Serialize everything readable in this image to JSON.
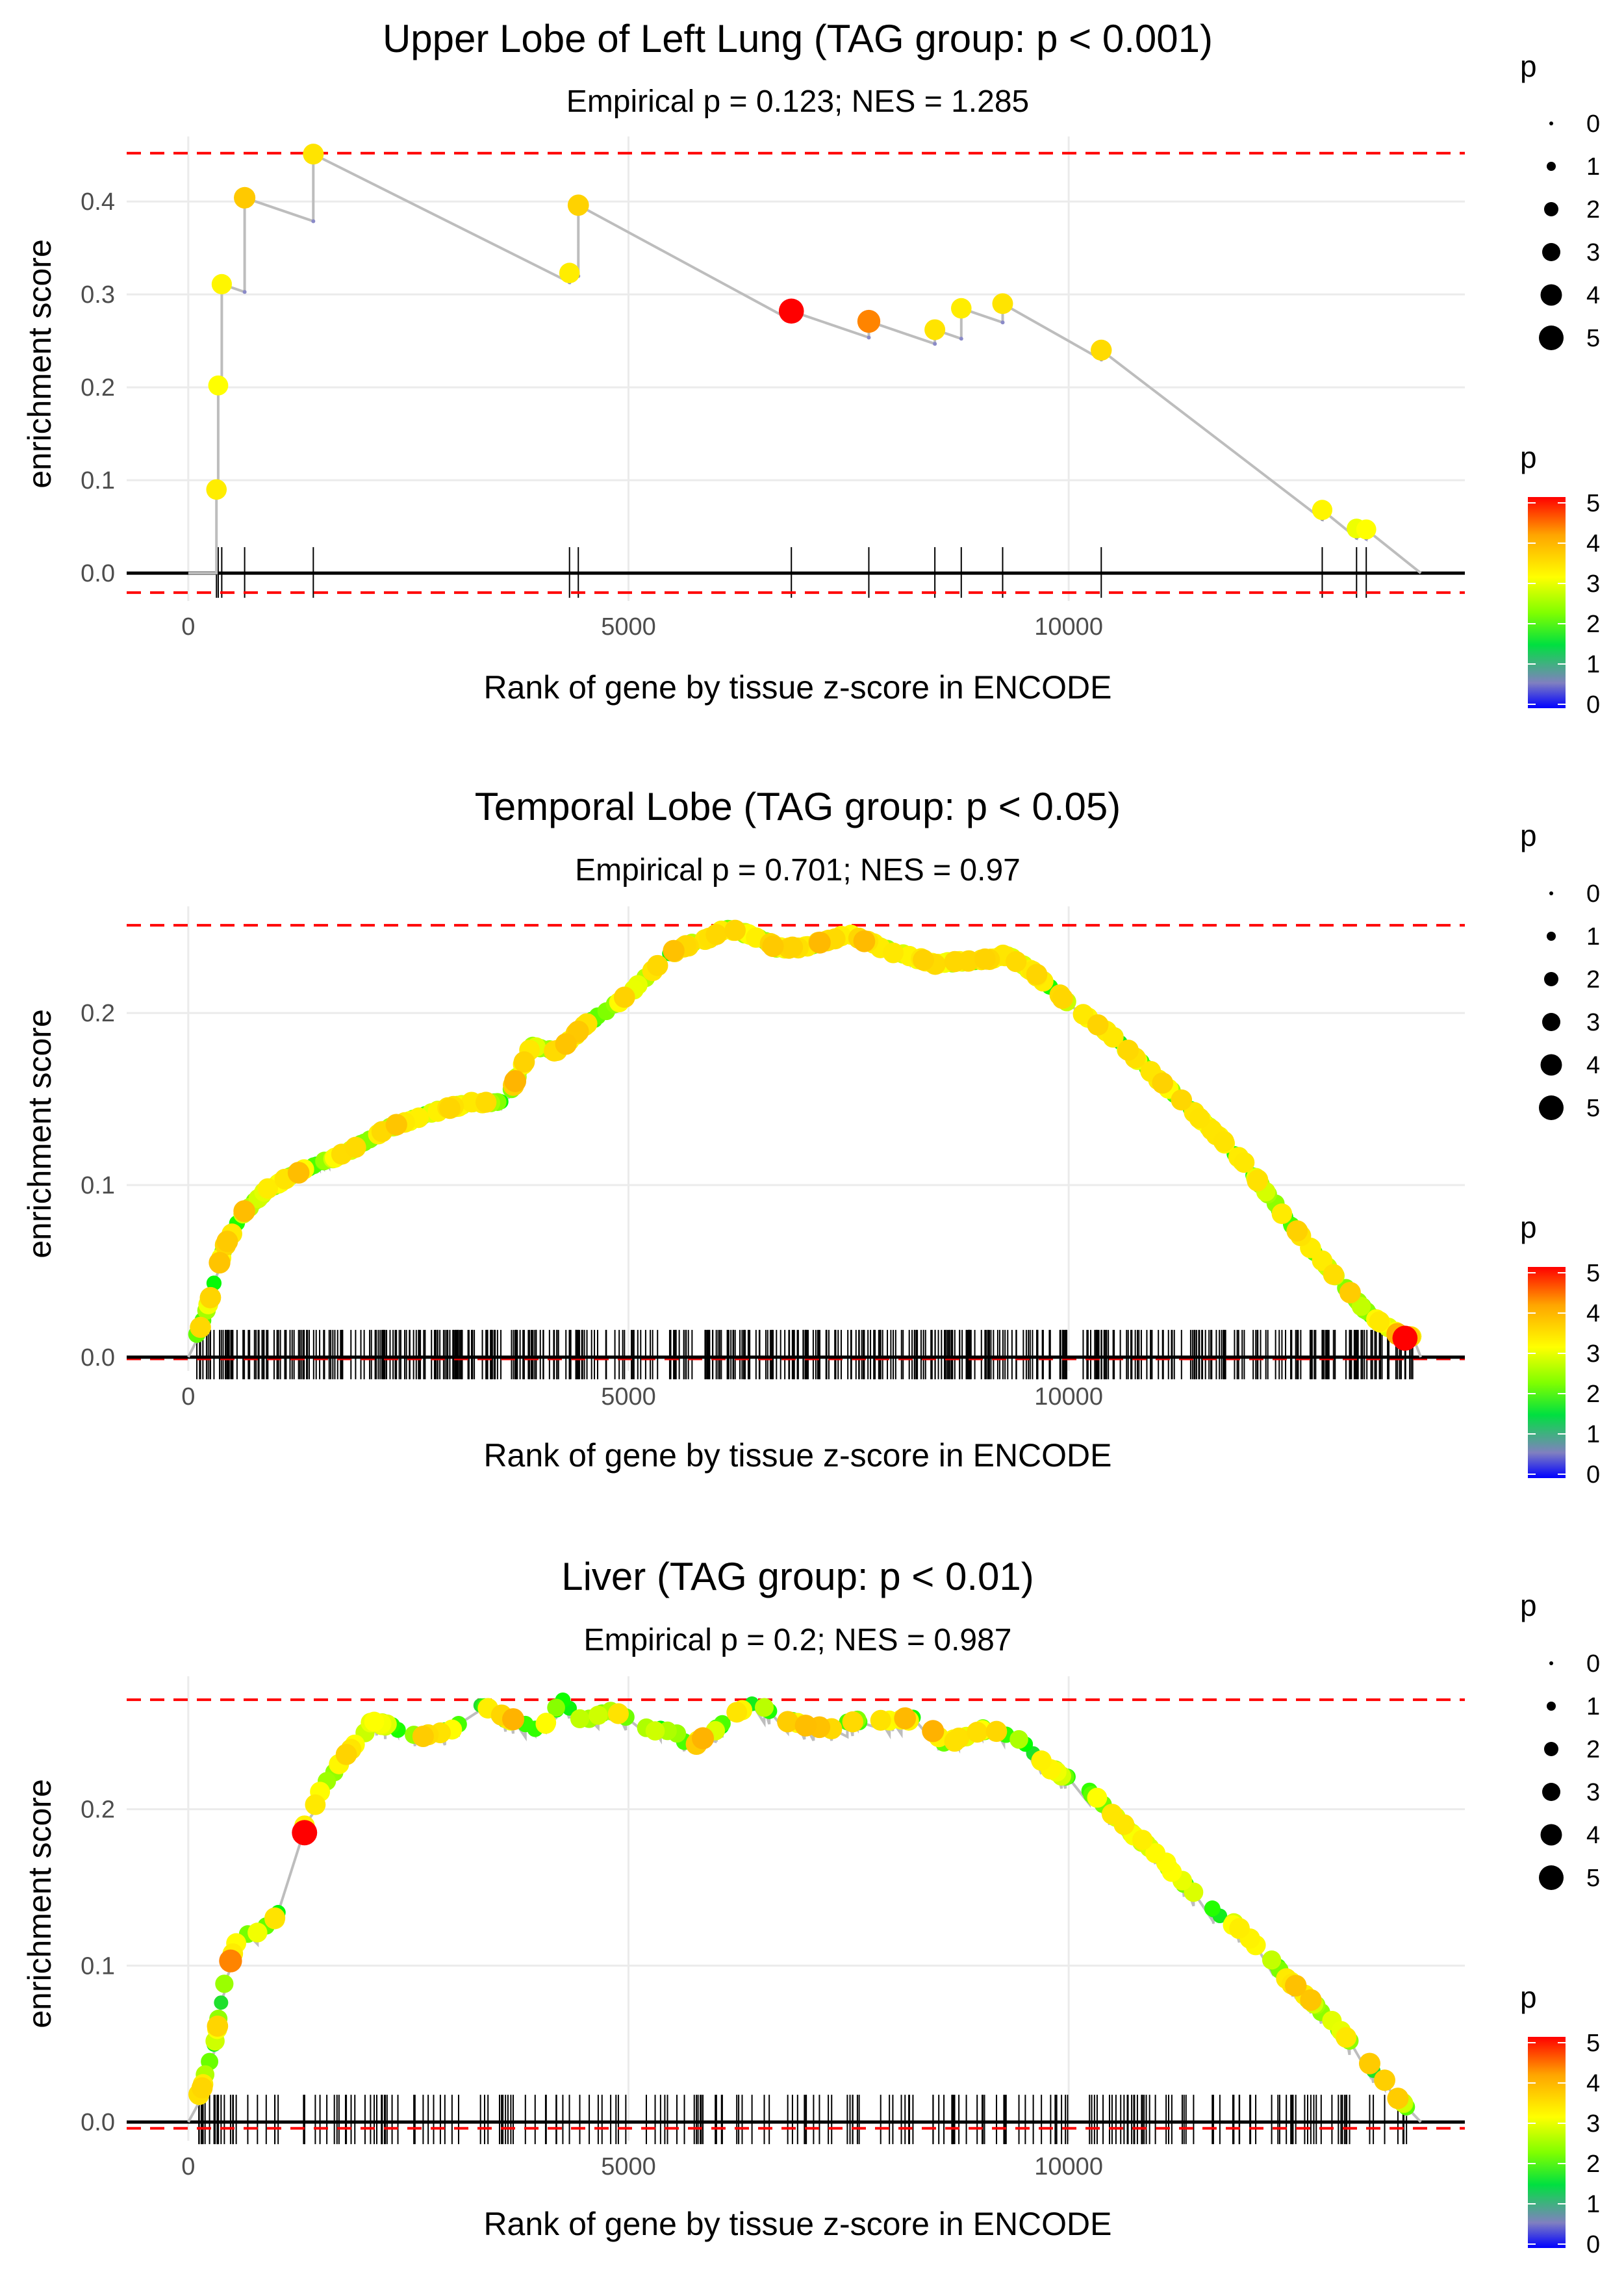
{
  "figure": {
    "x_axis_label": "Rank of gene by tissue z-score in ENCODE",
    "y_axis_label": "enrichment score"
  },
  "colors": {
    "gridline": "#ebebeb",
    "threshold_line": "#ff0000",
    "zero_line": "#000000",
    "curve": "#bdbdbd",
    "scale_0": "#0000ff",
    "scale_1": "#7f7fbf",
    "scale_2": "#00ff00",
    "scale_3": "#ffff00",
    "scale_4": "#ffa500",
    "scale_5": "#ff0000"
  },
  "legend": {
    "size_title": "p",
    "size_labels": [
      "0",
      "1",
      "2",
      "3",
      "4",
      "5"
    ],
    "color_title": "p",
    "color_labels": [
      "0",
      "1",
      "2",
      "3",
      "4",
      "5"
    ]
  },
  "chart_data": [
    {
      "type": "line",
      "title": "Upper Lobe of Left Lung (TAG group: p < 0.001)",
      "subtitle": "Empirical p = 0.123; NES = 1.285",
      "xlabel": "Rank of gene by tissue z-score in ENCODE",
      "ylabel": "enrichment score",
      "xlim": [
        -700,
        14500
      ],
      "ylim": [
        -0.03,
        0.47
      ],
      "x_ticks": [
        0,
        5000,
        10000
      ],
      "x_tick_labels": [
        "0",
        "5000",
        "10000"
      ],
      "y_ticks": [
        0.0,
        0.1,
        0.2,
        0.3,
        0.4
      ],
      "y_tick_labels": [
        "0.0",
        "0.1",
        "0.2",
        "0.3",
        "0.4"
      ],
      "threshold_max": 0.452,
      "threshold_min": -0.021,
      "hits": [
        {
          "x": 320,
          "es": 0.09,
          "p": 3.2
        },
        {
          "x": 340,
          "es": 0.202,
          "p": 3.0
        },
        {
          "x": 380,
          "es": 0.311,
          "p": 3.1
        },
        {
          "x": 640,
          "es": 0.404,
          "p": 3.6
        },
        {
          "x": 1420,
          "es": 0.451,
          "p": 3.3
        },
        {
          "x": 4330,
          "es": 0.323,
          "p": 3.2
        },
        {
          "x": 4430,
          "es": 0.396,
          "p": 3.5
        },
        {
          "x": 6850,
          "es": 0.282,
          "p": 5.2
        },
        {
          "x": 7730,
          "es": 0.271,
          "p": 4.2
        },
        {
          "x": 8480,
          "es": 0.262,
          "p": 3.3
        },
        {
          "x": 8780,
          "es": 0.285,
          "p": 3.2
        },
        {
          "x": 9250,
          "es": 0.29,
          "p": 3.3
        },
        {
          "x": 10370,
          "es": 0.24,
          "p": 3.4
        },
        {
          "x": 12880,
          "es": 0.068,
          "p": 3.1
        },
        {
          "x": 13270,
          "es": 0.048,
          "p": 2.9
        },
        {
          "x": 13380,
          "es": 0.047,
          "p": 3.0
        }
      ],
      "end_rank": 14000
    },
    {
      "type": "line",
      "title": "Temporal Lobe (TAG group: p < 0.05)",
      "subtitle": "Empirical p = 0.701; NES = 0.97",
      "xlabel": "Rank of gene by tissue z-score in ENCODE",
      "ylabel": "enrichment score",
      "xlim": [
        -700,
        14500
      ],
      "ylim": [
        -0.008,
        0.262
      ],
      "x_ticks": [
        0,
        5000,
        10000
      ],
      "x_tick_labels": [
        "0",
        "5000",
        "10000"
      ],
      "y_ticks": [
        0.0,
        0.1,
        0.2
      ],
      "y_tick_labels": [
        "0.0",
        "0.1",
        "0.2"
      ],
      "threshold_max": 0.251,
      "threshold_min": -0.001,
      "curve_points": [
        [
          0,
          0.0
        ],
        [
          200,
          0.025
        ],
        [
          400,
          0.062
        ],
        [
          600,
          0.082
        ],
        [
          900,
          0.097
        ],
        [
          1300,
          0.108
        ],
        [
          1800,
          0.118
        ],
        [
          2300,
          0.133
        ],
        [
          2800,
          0.142
        ],
        [
          3200,
          0.147
        ],
        [
          3600,
          0.148
        ],
        [
          3900,
          0.18
        ],
        [
          4200,
          0.177
        ],
        [
          4500,
          0.192
        ],
        [
          5000,
          0.21
        ],
        [
          5500,
          0.235
        ],
        [
          6000,
          0.245
        ],
        [
          6100,
          0.249
        ],
        [
          6500,
          0.243
        ],
        [
          6700,
          0.237
        ],
        [
          7000,
          0.238
        ],
        [
          7500,
          0.245
        ],
        [
          8000,
          0.235
        ],
        [
          8500,
          0.228
        ],
        [
          9000,
          0.23
        ],
        [
          9300,
          0.233
        ],
        [
          9600,
          0.223
        ],
        [
          10000,
          0.205
        ],
        [
          10500,
          0.186
        ],
        [
          11000,
          0.162
        ],
        [
          11500,
          0.138
        ],
        [
          12000,
          0.112
        ],
        [
          12500,
          0.078
        ],
        [
          13000,
          0.048
        ],
        [
          13400,
          0.025
        ],
        [
          13800,
          0.011
        ]
      ],
      "hit_density": "dense",
      "hit_count": 520,
      "highlight": {
        "x": 13820,
        "es": 0.011,
        "p": 5.2
      },
      "end_rank": 14000
    },
    {
      "type": "line",
      "title": "Liver (TAG group: p < 0.01)",
      "subtitle": "Empirical p = 0.2; NES = 0.987",
      "xlabel": "Rank of gene by tissue z-score in ENCODE",
      "ylabel": "enrichment score",
      "xlim": [
        -700,
        14500
      ],
      "ylim": [
        -0.012,
        0.285
      ],
      "x_ticks": [
        0,
        5000,
        10000
      ],
      "x_tick_labels": [
        "0",
        "5000",
        "10000"
      ],
      "y_ticks": [
        0.0,
        0.1,
        0.2
      ],
      "y_tick_labels": [
        "0.0",
        "0.1",
        "0.2"
      ],
      "threshold_max": 0.27,
      "threshold_min": -0.004,
      "curve_points": [
        [
          0,
          0.0
        ],
        [
          150,
          0.02
        ],
        [
          300,
          0.05
        ],
        [
          450,
          0.1
        ],
        [
          600,
          0.12
        ],
        [
          800,
          0.12
        ],
        [
          1000,
          0.13
        ],
        [
          1200,
          0.155
        ],
        [
          1300,
          0.185
        ],
        [
          1500,
          0.21
        ],
        [
          1800,
          0.235
        ],
        [
          2100,
          0.255
        ],
        [
          2400,
          0.25
        ],
        [
          2700,
          0.245
        ],
        [
          3000,
          0.25
        ],
        [
          3300,
          0.265
        ],
        [
          3700,
          0.255
        ],
        [
          4000,
          0.25
        ],
        [
          4250,
          0.268
        ],
        [
          4500,
          0.255
        ],
        [
          4800,
          0.262
        ],
        [
          5200,
          0.25
        ],
        [
          5500,
          0.25
        ],
        [
          5700,
          0.238
        ],
        [
          6000,
          0.25
        ],
        [
          6400,
          0.267
        ],
        [
          6800,
          0.255
        ],
        [
          7200,
          0.25
        ],
        [
          7600,
          0.255
        ],
        [
          8000,
          0.255
        ],
        [
          8300,
          0.257
        ],
        [
          8600,
          0.24
        ],
        [
          9000,
          0.25
        ],
        [
          9400,
          0.245
        ],
        [
          9800,
          0.225
        ],
        [
          10200,
          0.212
        ],
        [
          10600,
          0.19
        ],
        [
          11000,
          0.17
        ],
        [
          11500,
          0.14
        ],
        [
          12000,
          0.12
        ],
        [
          12500,
          0.09
        ],
        [
          13000,
          0.062
        ],
        [
          13500,
          0.03
        ],
        [
          13900,
          0.005
        ]
      ],
      "hit_density": "sparse",
      "hit_count": 230,
      "highlight": {
        "x": 1320,
        "es": 0.185,
        "p": 5.3
      },
      "highlight_2": {
        "x": 480,
        "es": 0.103,
        "p": 4.2
      },
      "end_rank": 14000
    }
  ]
}
